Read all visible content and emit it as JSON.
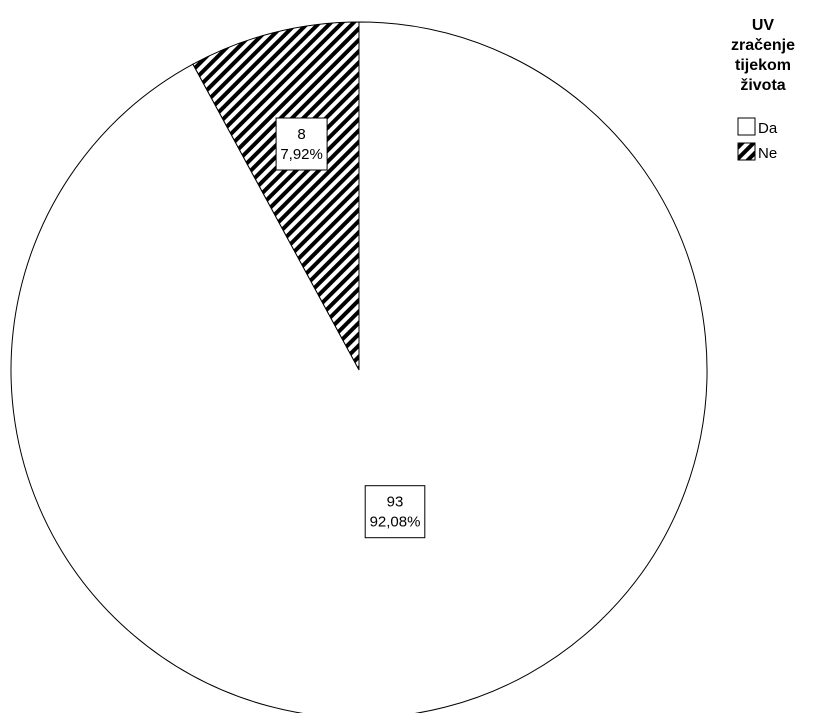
{
  "chart_data": {
    "type": "pie",
    "legend_title": [
      "UV",
      "zračenje",
      "tijekom",
      "života"
    ],
    "legend_position": "top-right",
    "start_angle_deg": 0,
    "direction": "counterclockwise-from-top",
    "slices": [
      {
        "name": "Da",
        "count": 93,
        "count_label": "93",
        "percent_label": "92,08%",
        "value": 92.08,
        "fill": "#ffffff",
        "pattern": "none"
      },
      {
        "name": "Ne",
        "count": 8,
        "count_label": "8",
        "percent_label": "7,92%",
        "value": 7.92,
        "fill": "#000000",
        "pattern": "diagonal-hatch"
      }
    ]
  }
}
